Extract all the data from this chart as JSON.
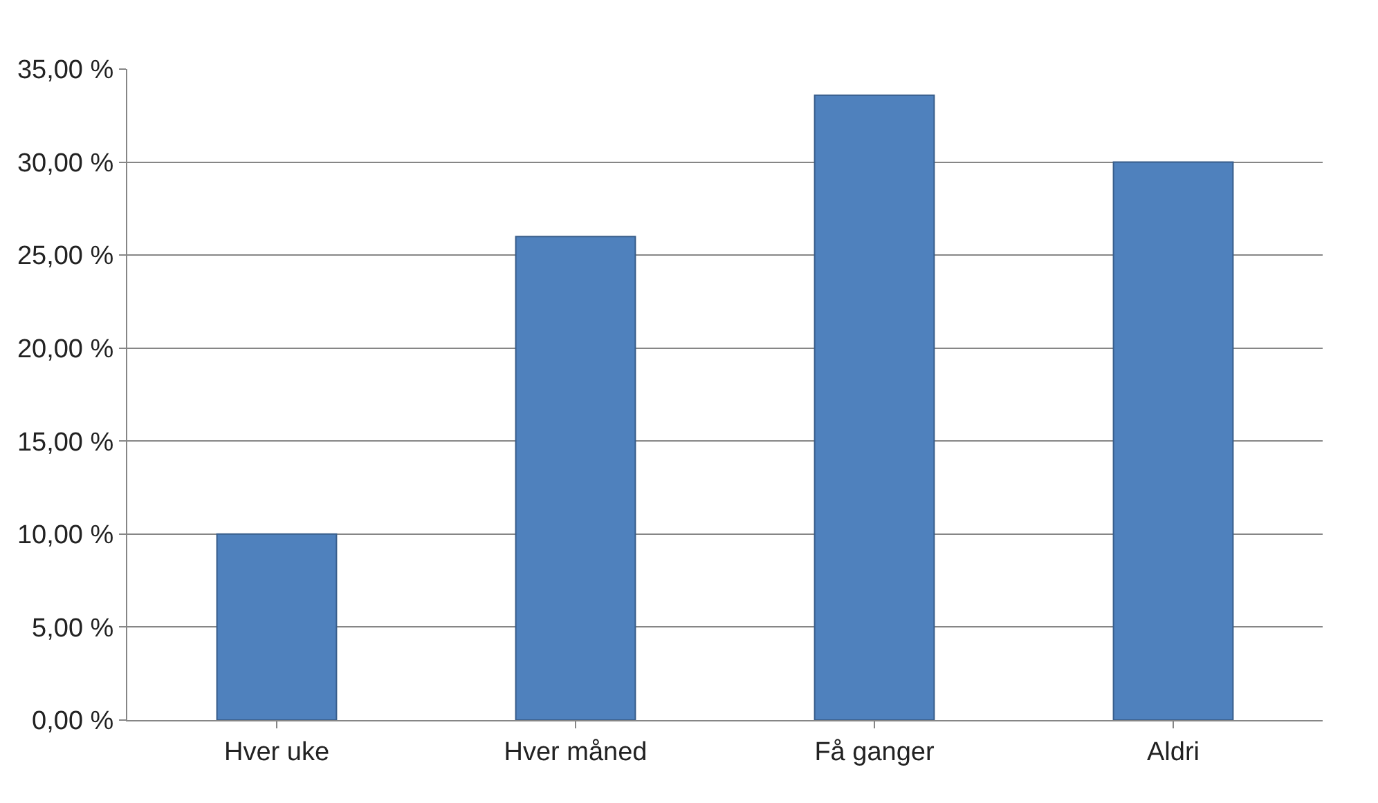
{
  "chart_data": {
    "type": "bar",
    "categories": [
      "Hver uke",
      "Hver måned",
      "Få ganger",
      "Aldri"
    ],
    "values": [
      10,
      26,
      33.6,
      30
    ],
    "color": "#4f81bd",
    "ylim": [
      0,
      35
    ],
    "yticks": [
      {
        "value": 0,
        "label": "0,00 %"
      },
      {
        "value": 5,
        "label": "5,00 %"
      },
      {
        "value": 10,
        "label": "10,00 %"
      },
      {
        "value": 15,
        "label": "15,00 %"
      },
      {
        "value": 20,
        "label": "20,00 %"
      },
      {
        "value": 25,
        "label": "25,00 %"
      },
      {
        "value": 30,
        "label": "30,00 %"
      },
      {
        "value": 35,
        "label": "35,00 %"
      }
    ],
    "grid": "y"
  }
}
